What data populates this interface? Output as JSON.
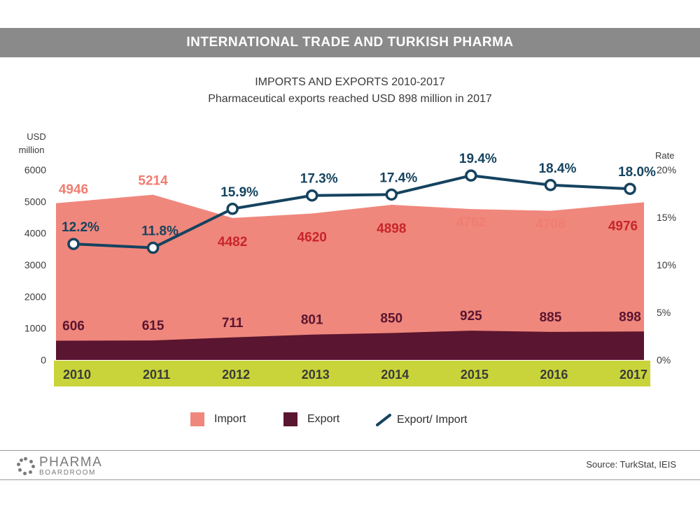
{
  "header": {
    "banner": "INTERNATIONAL TRADE AND TURKISH PHARMA"
  },
  "chart_data": {
    "type": "area",
    "title": "IMPORTS AND EXPORTS 2010-2017",
    "subtitle": "Pharmaceutical exports reached USD 898 million in 2017",
    "categories": [
      "2010",
      "2011",
      "2012",
      "2013",
      "2014",
      "2015",
      "2016",
      "2017"
    ],
    "y_left": {
      "label_line1": "USD",
      "label_line2": "million",
      "range": [
        0,
        6000
      ],
      "ticks": [
        "0",
        "1000",
        "2000",
        "3000",
        "4000",
        "5000",
        "6000"
      ]
    },
    "y_right": {
      "label": "Rate",
      "range": [
        0,
        20
      ],
      "ticks": [
        "0%",
        "5%",
        "10%",
        "15%",
        "20%"
      ]
    },
    "series": [
      {
        "name": "Import",
        "kind": "area",
        "color": "#f0877c",
        "values": [
          4946,
          5214,
          4482,
          4620,
          4898,
          4762,
          4708,
          4976
        ],
        "labels": [
          "4946",
          "5214",
          "4482",
          "4620",
          "4898",
          "4762",
          "4708",
          "4976"
        ]
      },
      {
        "name": "Export",
        "kind": "area",
        "color": "#5a1530",
        "values": [
          606,
          615,
          711,
          801,
          850,
          925,
          885,
          898
        ],
        "labels": [
          "606",
          "615",
          "711",
          "801",
          "850",
          "925",
          "885",
          "898"
        ]
      },
      {
        "name": "Export/ Import",
        "kind": "line",
        "axis": "right",
        "color": "#15435f",
        "values": [
          12.2,
          11.8,
          15.9,
          17.3,
          17.4,
          19.4,
          18.4,
          18.0
        ],
        "labels": [
          "12.2%",
          "11.8%",
          "15.9%",
          "17.3%",
          "17.4%",
          "19.4%",
          "18.4%",
          "18.0%"
        ]
      }
    ],
    "category_band_color": "#c8d43a",
    "legend_position": "bottom",
    "grid": false
  },
  "footer": {
    "logo_main": "PHARMA",
    "logo_sub": "BOARDROOM",
    "source": "Source:  TurkStat, IEIS"
  }
}
